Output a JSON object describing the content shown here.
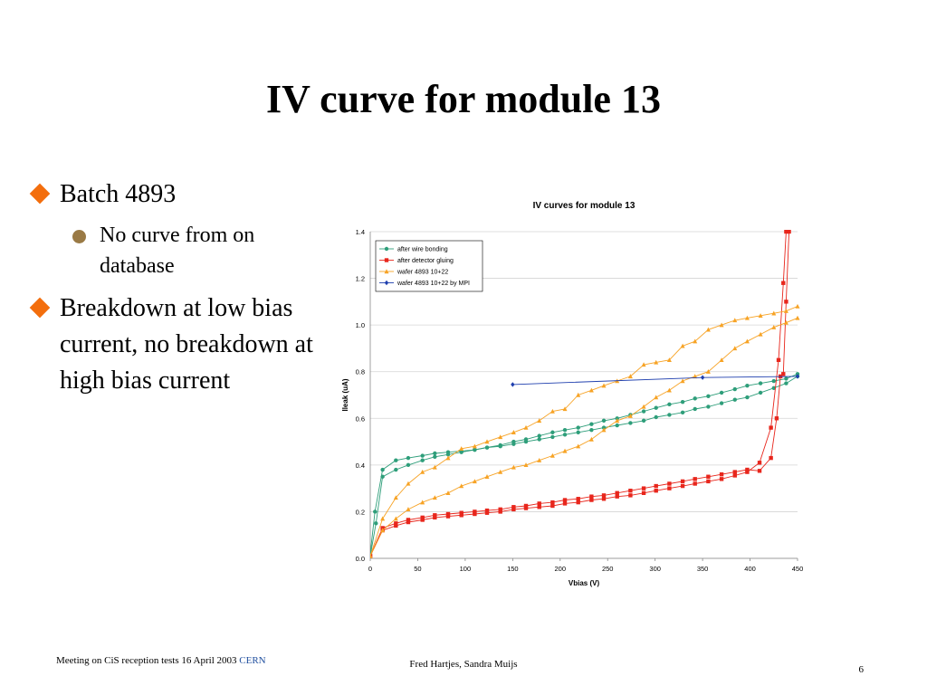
{
  "slide": {
    "title": "IV curve for module 13",
    "bullets": [
      {
        "text": "Batch 4893",
        "sub": [
          "No curve from on database"
        ]
      },
      {
        "text": "Breakdown at low bias current, no breakdown at high bias current",
        "sub": []
      }
    ],
    "footer": {
      "left": "Meeting on CiS reception tests 16 April 2003",
      "left_link": "CERN",
      "center": "Fred Hartjes, Sandra Muijs",
      "page": "6"
    },
    "colors": {
      "bullet_diamond": "#f36e0d",
      "sub_bullet": "#9a7a45"
    }
  },
  "chart_data": {
    "type": "line",
    "title": "IV curves for module 13",
    "xlabel": "Vbias (V)",
    "ylabel": "Ileak (uA)",
    "xlim": [
      0,
      450
    ],
    "ylim": [
      0,
      1.4
    ],
    "xticks": [
      "0",
      "50",
      "100",
      "150",
      "200",
      "250",
      "300",
      "350",
      "400",
      "450"
    ],
    "yticks": [
      "0.0",
      "0.2",
      "0.4",
      "0.6",
      "0.8",
      "1.0",
      "1.2",
      "1.4"
    ],
    "grid": "horizontal",
    "legend_position": "top-left",
    "series": [
      {
        "name": "after wire bonding",
        "color": "#2e9e7a",
        "marker": "circle",
        "runs": [
          [
            [
              0,
              0.02
            ],
            [
              5,
              0.2
            ],
            [
              13,
              0.38
            ],
            [
              27,
              0.42
            ],
            [
              40,
              0.43
            ],
            [
              55,
              0.44
            ],
            [
              68,
              0.45
            ],
            [
              82,
              0.455
            ],
            [
              96,
              0.46
            ],
            [
              110,
              0.465
            ],
            [
              123,
              0.475
            ],
            [
              137,
              0.48
            ],
            [
              151,
              0.49
            ],
            [
              164,
              0.5
            ],
            [
              178,
              0.51
            ],
            [
              192,
              0.52
            ],
            [
              205,
              0.53
            ],
            [
              219,
              0.54
            ],
            [
              233,
              0.55
            ],
            [
              246,
              0.56
            ],
            [
              260,
              0.57
            ],
            [
              274,
              0.58
            ],
            [
              288,
              0.59
            ],
            [
              301,
              0.605
            ],
            [
              315,
              0.615
            ],
            [
              329,
              0.625
            ],
            [
              342,
              0.64
            ],
            [
              356,
              0.65
            ],
            [
              370,
              0.665
            ],
            [
              384,
              0.68
            ],
            [
              397,
              0.69
            ],
            [
              411,
              0.71
            ],
            [
              425,
              0.73
            ],
            [
              438,
              0.75
            ],
            [
              450,
              0.78
            ]
          ],
          [
            [
              0,
              0.01
            ],
            [
              6,
              0.15
            ],
            [
              13,
              0.35
            ],
            [
              27,
              0.38
            ],
            [
              40,
              0.4
            ],
            [
              55,
              0.42
            ],
            [
              68,
              0.435
            ],
            [
              82,
              0.445
            ],
            [
              96,
              0.455
            ],
            [
              110,
              0.465
            ],
            [
              123,
              0.475
            ],
            [
              137,
              0.485
            ],
            [
              151,
              0.5
            ],
            [
              164,
              0.51
            ],
            [
              178,
              0.525
            ],
            [
              192,
              0.54
            ],
            [
              205,
              0.55
            ],
            [
              219,
              0.56
            ],
            [
              233,
              0.575
            ],
            [
              246,
              0.59
            ],
            [
              260,
              0.6
            ],
            [
              274,
              0.615
            ],
            [
              288,
              0.63
            ],
            [
              301,
              0.645
            ],
            [
              315,
              0.66
            ],
            [
              329,
              0.67
            ],
            [
              342,
              0.685
            ],
            [
              356,
              0.695
            ],
            [
              370,
              0.71
            ],
            [
              384,
              0.725
            ],
            [
              397,
              0.74
            ],
            [
              411,
              0.75
            ],
            [
              425,
              0.76
            ],
            [
              438,
              0.77
            ],
            [
              450,
              0.79
            ]
          ]
        ]
      },
      {
        "name": "after detector gluing",
        "color": "#e8261c",
        "marker": "square",
        "runs": [
          [
            [
              0,
              0.01
            ],
            [
              13,
              0.12
            ],
            [
              27,
              0.14
            ],
            [
              40,
              0.155
            ],
            [
              55,
              0.165
            ],
            [
              68,
              0.175
            ],
            [
              82,
              0.18
            ],
            [
              96,
              0.185
            ],
            [
              110,
              0.19
            ],
            [
              123,
              0.195
            ],
            [
              137,
              0.2
            ],
            [
              151,
              0.21
            ],
            [
              164,
              0.215
            ],
            [
              178,
              0.22
            ],
            [
              192,
              0.225
            ],
            [
              205,
              0.235
            ],
            [
              219,
              0.24
            ],
            [
              233,
              0.25
            ],
            [
              246,
              0.255
            ],
            [
              260,
              0.265
            ],
            [
              274,
              0.27
            ],
            [
              288,
              0.28
            ],
            [
              301,
              0.29
            ],
            [
              315,
              0.3
            ],
            [
              329,
              0.31
            ],
            [
              342,
              0.32
            ],
            [
              356,
              0.33
            ],
            [
              370,
              0.34
            ],
            [
              384,
              0.355
            ],
            [
              397,
              0.37
            ],
            [
              410,
              0.41
            ],
            [
              422,
              0.56
            ],
            [
              430,
              0.85
            ],
            [
              435,
              1.18
            ],
            [
              438,
              1.4
            ]
          ],
          [
            [
              0,
              0.01
            ],
            [
              13,
              0.13
            ],
            [
              27,
              0.15
            ],
            [
              40,
              0.165
            ],
            [
              55,
              0.175
            ],
            [
              68,
              0.185
            ],
            [
              82,
              0.19
            ],
            [
              96,
              0.195
            ],
            [
              110,
              0.2
            ],
            [
              123,
              0.205
            ],
            [
              137,
              0.21
            ],
            [
              151,
              0.22
            ],
            [
              164,
              0.225
            ],
            [
              178,
              0.235
            ],
            [
              192,
              0.24
            ],
            [
              205,
              0.25
            ],
            [
              219,
              0.255
            ],
            [
              233,
              0.265
            ],
            [
              246,
              0.27
            ],
            [
              260,
              0.28
            ],
            [
              274,
              0.29
            ],
            [
              288,
              0.3
            ],
            [
              301,
              0.31
            ],
            [
              315,
              0.32
            ],
            [
              329,
              0.33
            ],
            [
              342,
              0.34
            ],
            [
              356,
              0.35
            ],
            [
              370,
              0.36
            ],
            [
              384,
              0.37
            ],
            [
              397,
              0.38
            ],
            [
              410,
              0.375
            ],
            [
              422,
              0.43
            ],
            [
              428,
              0.6
            ],
            [
              432,
              0.78
            ],
            [
              435,
              0.79
            ],
            [
              438,
              1.1
            ],
            [
              441,
              1.4
            ]
          ]
        ]
      },
      {
        "name": "wafer 4893 10+22",
        "color": "#f7a325",
        "marker": "triangle",
        "runs": [
          [
            [
              0,
              0.01
            ],
            [
              13,
              0.17
            ],
            [
              27,
              0.26
            ],
            [
              40,
              0.32
            ],
            [
              55,
              0.37
            ],
            [
              68,
              0.39
            ],
            [
              82,
              0.43
            ],
            [
              96,
              0.47
            ],
            [
              110,
              0.48
            ],
            [
              123,
              0.5
            ],
            [
              137,
              0.52
            ],
            [
              151,
              0.54
            ],
            [
              164,
              0.56
            ],
            [
              178,
              0.59
            ],
            [
              192,
              0.63
            ],
            [
              205,
              0.64
            ],
            [
              219,
              0.7
            ],
            [
              233,
              0.72
            ],
            [
              246,
              0.74
            ],
            [
              260,
              0.76
            ],
            [
              274,
              0.78
            ],
            [
              288,
              0.83
            ],
            [
              301,
              0.84
            ],
            [
              315,
              0.85
            ],
            [
              329,
              0.91
            ],
            [
              342,
              0.93
            ],
            [
              356,
              0.98
            ],
            [
              370,
              1.0
            ],
            [
              384,
              1.02
            ],
            [
              397,
              1.03
            ],
            [
              411,
              1.04
            ],
            [
              425,
              1.05
            ],
            [
              438,
              1.06
            ],
            [
              450,
              1.08
            ]
          ],
          [
            [
              0,
              0.01
            ],
            [
              13,
              0.12
            ],
            [
              27,
              0.17
            ],
            [
              40,
              0.21
            ],
            [
              55,
              0.24
            ],
            [
              68,
              0.26
            ],
            [
              82,
              0.28
            ],
            [
              96,
              0.31
            ],
            [
              110,
              0.33
            ],
            [
              123,
              0.35
            ],
            [
              137,
              0.37
            ],
            [
              151,
              0.39
            ],
            [
              164,
              0.4
            ],
            [
              178,
              0.42
            ],
            [
              192,
              0.44
            ],
            [
              205,
              0.46
            ],
            [
              219,
              0.48
            ],
            [
              233,
              0.51
            ],
            [
              246,
              0.55
            ],
            [
              260,
              0.59
            ],
            [
              274,
              0.61
            ],
            [
              288,
              0.65
            ],
            [
              301,
              0.69
            ],
            [
              315,
              0.72
            ],
            [
              329,
              0.76
            ],
            [
              342,
              0.78
            ],
            [
              356,
              0.8
            ],
            [
              370,
              0.85
            ],
            [
              384,
              0.9
            ],
            [
              397,
              0.93
            ],
            [
              411,
              0.96
            ],
            [
              425,
              0.99
            ],
            [
              438,
              1.01
            ],
            [
              450,
              1.03
            ]
          ]
        ]
      },
      {
        "name": "wafer 4893 10+22 by MPI",
        "color": "#1f3fae",
        "marker": "diamond",
        "runs": [
          [
            [
              150,
              0.745
            ],
            [
              350,
              0.775
            ],
            [
              450,
              0.78
            ]
          ]
        ]
      }
    ]
  }
}
